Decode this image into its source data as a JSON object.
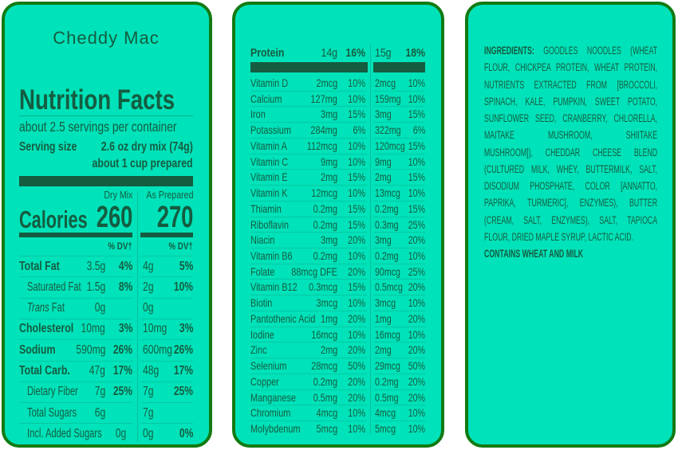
{
  "product_name": "Cheddy Mac",
  "facts": {
    "title": "Nutrition Facts",
    "servings": "about 2.5 servings per container",
    "serving_size_label": "Serving size",
    "serving_size_value": "2.6 oz dry mix (74g)",
    "serving_size_prepared": "about 1 cup prepared",
    "col_dry": "Dry Mix",
    "col_prepared": "As Prepared",
    "calories_label": "Calories",
    "calories_dry": "260",
    "calories_prepared": "270",
    "dv_header": "% DV†",
    "rows": [
      {
        "level": "main",
        "name": "Total Fat",
        "dry_amount": "3.5g",
        "dry_dv": "4%",
        "prep_amount": "4g",
        "prep_dv": "5%"
      },
      {
        "level": "sub",
        "name": "Saturated Fat",
        "dry_amount": "1.5g",
        "dry_dv": "8%",
        "prep_amount": "2g",
        "prep_dv": "10%"
      },
      {
        "level": "sub",
        "name_italic": "Trans",
        "name": " Fat",
        "dry_amount": "0g",
        "dry_dv": "",
        "prep_amount": "0g",
        "prep_dv": ""
      },
      {
        "level": "main",
        "name": "Cholesterol",
        "dry_amount": "10mg",
        "dry_dv": "3%",
        "prep_amount": "10mg",
        "prep_dv": "3%"
      },
      {
        "level": "main",
        "name": "Sodium",
        "dry_amount": "590mg",
        "dry_dv": "26%",
        "prep_amount": "600mg",
        "prep_dv": "26%"
      },
      {
        "level": "main",
        "name": "Total Carb.",
        "dry_amount": "47g",
        "dry_dv": "17%",
        "prep_amount": "48g",
        "prep_dv": "17%"
      },
      {
        "level": "sub",
        "name": "Dietary Fiber",
        "dry_amount": "7g",
        "dry_dv": "25%",
        "prep_amount": "7g",
        "prep_dv": "25%"
      },
      {
        "level": "sub",
        "name": "Total Sugars",
        "dry_amount": "6g",
        "dry_dv": "",
        "prep_amount": "7g",
        "prep_dv": ""
      },
      {
        "level": "sub",
        "name": "Incl. Added Sugars",
        "dry_amount": "0g",
        "dry_dv": "",
        "prep_amount": "0g",
        "prep_dv": "0%"
      }
    ]
  },
  "protein": {
    "name": "Protein",
    "dry_amount": "14g",
    "dry_dv": "16%",
    "prep_amount": "15g",
    "prep_dv": "18%"
  },
  "micros": [
    {
      "name": "Vitamin D",
      "dry_amount": "2mcg",
      "dry_dv": "10%",
      "prep_amount": "2mcg",
      "prep_dv": "10%"
    },
    {
      "name": "Calcium",
      "dry_amount": "127mg",
      "dry_dv": "10%",
      "prep_amount": "159mg",
      "prep_dv": "10%"
    },
    {
      "name": "Iron",
      "dry_amount": "3mg",
      "dry_dv": "15%",
      "prep_amount": "3mg",
      "prep_dv": "15%"
    },
    {
      "name": "Potassium",
      "dry_amount": "284mg",
      "dry_dv": "6%",
      "prep_amount": "322mg",
      "prep_dv": "6%"
    },
    {
      "name": "Vitamin A",
      "dry_amount": "112mcg",
      "dry_dv": "10%",
      "prep_amount": "120mcg",
      "prep_dv": "15%"
    },
    {
      "name": "Vitamin C",
      "dry_amount": "9mg",
      "dry_dv": "10%",
      "prep_amount": "9mg",
      "prep_dv": "10%"
    },
    {
      "name": "Vitamin E",
      "dry_amount": "2mg",
      "dry_dv": "15%",
      "prep_amount": "2mg",
      "prep_dv": "15%"
    },
    {
      "name": "Vitamin K",
      "dry_amount": "12mcg",
      "dry_dv": "10%",
      "prep_amount": "13mcg",
      "prep_dv": "10%"
    },
    {
      "name": "Thiamin",
      "dry_amount": "0.2mg",
      "dry_dv": "15%",
      "prep_amount": "0.2mg",
      "prep_dv": "15%"
    },
    {
      "name": "Riboflavin",
      "dry_amount": "0.2mg",
      "dry_dv": "15%",
      "prep_amount": "0.3mg",
      "prep_dv": "25%"
    },
    {
      "name": "Niacin",
      "dry_amount": "3mg",
      "dry_dv": "20%",
      "prep_amount": "3mg",
      "prep_dv": "20%"
    },
    {
      "name": "Vitamin B6",
      "dry_amount": "0.2mg",
      "dry_dv": "10%",
      "prep_amount": "0.2mg",
      "prep_dv": "10%"
    },
    {
      "name": "Folate",
      "dry_amount": "88mcg DFE",
      "dry_dv": "20%",
      "prep_amount": "90mcg",
      "prep_dv": "25%"
    },
    {
      "name": "Vitamin B12",
      "dry_amount": "0.3mcg",
      "dry_dv": "15%",
      "prep_amount": "0.5mcg",
      "prep_dv": "20%"
    },
    {
      "name": "Biotin",
      "dry_amount": "3mcg",
      "dry_dv": "10%",
      "prep_amount": "3mcg",
      "prep_dv": "10%"
    },
    {
      "name": "Pantothenic Acid",
      "dry_amount": "1mg",
      "dry_dv": "20%",
      "prep_amount": "1mg",
      "prep_dv": "20%"
    },
    {
      "name": "Iodine",
      "dry_amount": "16mcg",
      "dry_dv": "10%",
      "prep_amount": "16mcg",
      "prep_dv": "10%"
    },
    {
      "name": "Zinc",
      "dry_amount": "2mg",
      "dry_dv": "20%",
      "prep_amount": "2mg",
      "prep_dv": "20%"
    },
    {
      "name": "Selenium",
      "dry_amount": "28mcg",
      "dry_dv": "50%",
      "prep_amount": "29mcg",
      "prep_dv": "50%"
    },
    {
      "name": "Copper",
      "dry_amount": "0.2mg",
      "dry_dv": "20%",
      "prep_amount": "0.2mg",
      "prep_dv": "20%"
    },
    {
      "name": "Manganese",
      "dry_amount": "0.5mg",
      "dry_dv": "20%",
      "prep_amount": "0.5mg",
      "prep_dv": "20%"
    },
    {
      "name": "Chromium",
      "dry_amount": "4mcg",
      "dry_dv": "10%",
      "prep_amount": "4mcg",
      "prep_dv": "10%"
    },
    {
      "name": "Molybdenum",
      "dry_amount": "5mcg",
      "dry_dv": "10%",
      "prep_amount": "5mcg",
      "prep_dv": "10%"
    }
  ],
  "ingredients": {
    "label": "INGREDIENTS:",
    "lines": [
      " GOODLES NOODLES (WHEAT",
      "FLOUR, CHICKPEA PROTEIN, WHEAT PROTEIN,",
      "NUTRIENTS EXTRACTED FROM [BROCCOLI,",
      "SPINACH, KALE, PUMPKIN, SWEET POTATO,",
      "SUNFLOWER SEED, CRANBERRY, CHLORELLA,",
      "MAITAKE MUSHROOM, SHIITAKE",
      "MUSHROOM]), CHEDDAR CHEESE BLEND",
      "(CULTURED MILK, WHEY, BUTTERMILK, SALT,",
      "DISODIUM PHOSPHATE, COLOR [ANNATTO,",
      "PAPRIKA, TURMERIC], ENZYMES), BUTTER",
      "(CREAM, SALT, ENZYMES), SALT, TAPIOCA",
      "FLOUR, DRIED MAPLE SYRUP, LACTIC ACID."
    ],
    "allergens": "CONTAINS WHEAT AND MILK"
  },
  "colors": {
    "panel_fill": "#00e2b9",
    "panel_border": "#127a12",
    "text": "#155c40"
  }
}
